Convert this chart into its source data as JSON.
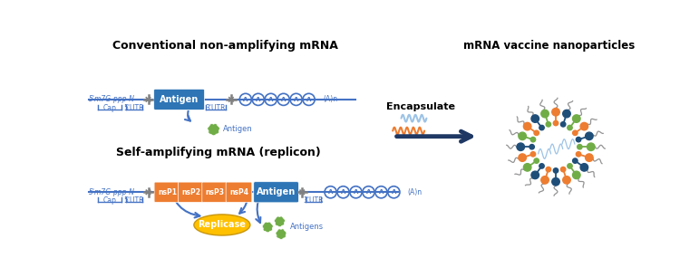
{
  "title_left": "Conventional non-amplifying mRNA",
  "title_right": "mRNA vaccine nanoparticles",
  "title_bottom_left": "Self-amplifying mRNA (replicon)",
  "bg_color": "#ffffff",
  "blue_dark": "#1F4E79",
  "blue_med": "#2E75B6",
  "blue_light": "#9DC3E6",
  "blue_label": "#4472C4",
  "orange": "#ED7D31",
  "green": "#70AD47",
  "yellow": "#FFC000",
  "gray": "#808080",
  "line_color": "#4472C4",
  "arrow_color": "#1F3864"
}
